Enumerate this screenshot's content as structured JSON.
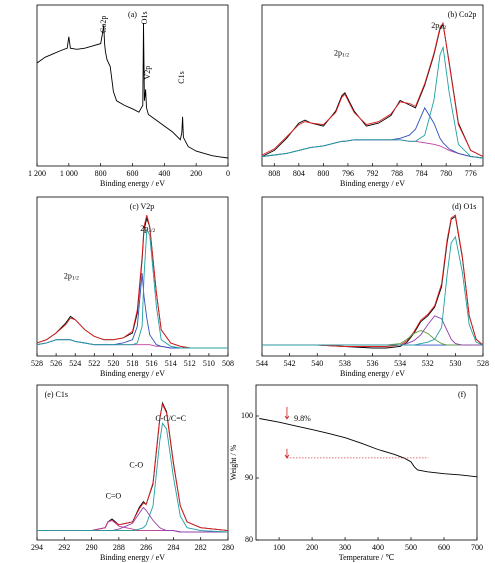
{
  "chart_data": [
    {
      "type": "line",
      "title": "(a)",
      "xlabel": "Binding energy / eV",
      "xlim": [
        1200,
        0
      ],
      "xticks": [
        {
          "value": 1200,
          "label": "1 200"
        },
        {
          "value": 1000,
          "label": "1 000"
        },
        800,
        600,
        400,
        200,
        0
      ],
      "x": [
        1200,
        1150,
        1100,
        1050,
        1010,
        1000,
        990,
        950,
        900,
        850,
        800,
        790,
        781,
        775,
        770,
        760,
        740,
        720,
        700,
        650,
        600,
        560,
        535,
        531,
        525,
        518,
        512,
        500,
        450,
        400,
        350,
        300,
        290,
        285,
        280,
        250,
        200,
        100,
        50,
        0
      ],
      "series": [
        {
          "color": "#000000",
          "values": [
            95,
            100,
            103,
            106,
            108,
            118,
            108,
            107,
            108,
            110,
            112,
            120,
            128,
            112,
            105,
            98,
            92,
            70,
            62,
            58,
            55,
            52,
            58,
            130,
            62,
            72,
            56,
            50,
            45,
            40,
            35,
            28,
            34,
            48,
            30,
            22,
            18,
            14,
            13,
            12
          ]
        }
      ],
      "annotations": [
        {
          "text": "Co2p"
        },
        {
          "text": "O1s"
        },
        {
          "text": "V2p"
        },
        {
          "text": "C1s"
        }
      ]
    },
    {
      "type": "line",
      "title": "(b) Co2p",
      "xlabel": "Binding energy / eV",
      "xlim": [
        810,
        774
      ],
      "xticks": [
        808,
        804,
        800,
        796,
        792,
        788,
        784,
        780,
        776
      ],
      "x": [
        810,
        808,
        806,
        804,
        803,
        802,
        800,
        798,
        797,
        796.5,
        795,
        793,
        791,
        789,
        787.5,
        786,
        785,
        783.5,
        782,
        781,
        780.5,
        779.5,
        778,
        776,
        774
      ],
      "series": [
        {
          "color": "#000000",
          "values": [
            8,
            12,
            20,
            30,
            32,
            30,
            28,
            38,
            48,
            50,
            38,
            28,
            30,
            35,
            45,
            42,
            40,
            55,
            75,
            92,
            95,
            70,
            30,
            12,
            8
          ]
        },
        {
          "color": "#e02020",
          "values": [
            9,
            13,
            21,
            29,
            31,
            30,
            29,
            37,
            47,
            49,
            37,
            29,
            31,
            36,
            44,
            43,
            41,
            56,
            76,
            93,
            96,
            69,
            29,
            12,
            8
          ]
        },
        {
          "color": "#c040a0",
          "values": [
            8,
            9,
            10,
            12,
            13,
            14,
            15,
            17,
            18,
            18,
            19,
            19,
            19,
            19,
            19,
            18,
            18,
            17,
            16,
            15,
            14,
            12,
            10,
            8,
            7
          ]
        },
        {
          "color": "#3050c0",
          "values": [
            8,
            9,
            10,
            12,
            13,
            14,
            15,
            17,
            18,
            18,
            19,
            19,
            19,
            19,
            20,
            22,
            26,
            40,
            30,
            20,
            17,
            13,
            10,
            8,
            7
          ]
        },
        {
          "color": "#20a0a0",
          "values": [
            8,
            9,
            10,
            12,
            13,
            14,
            15,
            17,
            18,
            18,
            19,
            19,
            19,
            19,
            19,
            18,
            18,
            22,
            45,
            75,
            80,
            50,
            16,
            8,
            7
          ]
        }
      ],
      "annotations": [
        {
          "text": "2p",
          "sub": "1/2"
        },
        {
          "text": "2p",
          "sub": "3/2"
        }
      ]
    },
    {
      "type": "line",
      "title": "(c) V2p",
      "xlabel": "Binding energy / eV",
      "xlim": [
        528,
        508
      ],
      "xticks": [
        528,
        526,
        524,
        522,
        520,
        518,
        516,
        514,
        512,
        510,
        508
      ],
      "x": [
        528,
        527,
        526,
        525,
        524.5,
        524,
        523,
        522,
        521,
        520,
        519,
        518,
        517.5,
        517,
        516.8,
        516.5,
        516.2,
        515.5,
        515,
        514,
        513,
        512,
        510,
        508
      ],
      "series": [
        {
          "color": "#000000",
          "values": [
            10,
            12,
            16,
            22,
            26,
            24,
            18,
            14,
            12,
            12,
            13,
            16,
            28,
            60,
            78,
            85,
            80,
            40,
            18,
            10,
            8,
            7,
            7,
            7
          ]
        },
        {
          "color": "#e02020",
          "values": [
            10,
            12,
            16,
            21,
            25,
            24,
            18,
            14,
            12,
            12,
            13,
            17,
            30,
            62,
            80,
            87,
            80,
            40,
            18,
            10,
            8,
            7,
            7,
            7
          ]
        },
        {
          "color": "#c040a0",
          "values": [
            9,
            10,
            12,
            12,
            12,
            11,
            10,
            9,
            9,
            9,
            9,
            9,
            9,
            9,
            9,
            9,
            9,
            8,
            8,
            7,
            7,
            7,
            7,
            7
          ]
        },
        {
          "color": "#3050c0",
          "values": [
            9,
            10,
            12,
            12,
            12,
            11,
            10,
            9,
            9,
            9,
            10,
            12,
            20,
            52,
            38,
            25,
            15,
            9,
            8,
            7,
            7,
            7,
            7,
            7
          ]
        },
        {
          "color": "#20a0a0",
          "values": [
            9,
            10,
            12,
            12,
            12,
            11,
            10,
            9,
            9,
            9,
            9,
            9,
            10,
            20,
            50,
            78,
            75,
            32,
            12,
            8,
            7,
            7,
            7,
            7
          ]
        }
      ],
      "annotations": [
        {
          "text": "2p",
          "sub": "1/2"
        },
        {
          "text": "2p",
          "sub": "3/2"
        }
      ]
    },
    {
      "type": "line",
      "title": "(d) O1s",
      "xlabel": "Binding energy / eV",
      "xlim": [
        544,
        528
      ],
      "xticks": [
        544,
        542,
        540,
        538,
        536,
        534,
        532,
        530,
        528
      ],
      "x": [
        544,
        542,
        540,
        538,
        536,
        535,
        534,
        533.5,
        533,
        532.5,
        532,
        531.5,
        531,
        530.6,
        530.3,
        530,
        529.5,
        529,
        528.5,
        528
      ],
      "series": [
        {
          "color": "#000000",
          "values": [
            10,
            10,
            10,
            9,
            8,
            8,
            9,
            12,
            18,
            26,
            30,
            36,
            50,
            80,
            96,
            98,
            70,
            30,
            14,
            10
          ]
        },
        {
          "color": "#e02020",
          "values": [
            10,
            10,
            10,
            9,
            9,
            9,
            10,
            13,
            19,
            27,
            31,
            37,
            52,
            82,
            97,
            99,
            71,
            30,
            14,
            10
          ]
        },
        {
          "color": "#3050c0",
          "values": [
            10,
            10,
            10,
            10,
            10,
            10,
            10,
            10,
            10,
            10,
            10,
            10,
            10,
            10,
            10,
            10,
            10,
            10,
            10,
            10
          ]
        },
        {
          "color": "#60a040",
          "values": [
            10,
            10,
            10,
            10,
            10,
            10,
            11,
            14,
            18,
            20,
            18,
            14,
            11,
            10,
            10,
            10,
            10,
            10,
            10,
            10
          ]
        },
        {
          "color": "#9040b0",
          "values": [
            10,
            10,
            10,
            10,
            10,
            10,
            10,
            11,
            13,
            17,
            24,
            30,
            28,
            20,
            14,
            11,
            10,
            10,
            10,
            10
          ]
        },
        {
          "color": "#20a0a0",
          "values": [
            10,
            10,
            10,
            10,
            10,
            10,
            10,
            10,
            10,
            11,
            12,
            14,
            22,
            58,
            80,
            84,
            60,
            24,
            12,
            10
          ]
        }
      ]
    },
    {
      "type": "line",
      "title": "(e) C1s",
      "xlabel": "Binding energy / eV",
      "xlim": [
        294,
        280
      ],
      "xticks": [
        294,
        292,
        290,
        288,
        286,
        284,
        282,
        280
      ],
      "x": [
        294,
        292,
        290,
        289,
        288.8,
        288.5,
        288,
        287,
        286.5,
        286.2,
        286,
        285.5,
        285,
        284.8,
        284.5,
        284,
        283.5,
        283,
        282,
        280
      ],
      "series": [
        {
          "color": "#000000",
          "values": [
            8,
            8,
            8,
            10,
            14,
            16,
            12,
            14,
            24,
            28,
            26,
            40,
            85,
            96,
            90,
            55,
            25,
            14,
            10,
            8
          ]
        },
        {
          "color": "#e02020",
          "values": [
            8,
            8,
            8,
            10,
            14,
            15,
            12,
            14,
            23,
            27,
            26,
            41,
            86,
            95,
            89,
            54,
            25,
            14,
            10,
            8
          ]
        },
        {
          "color": "#808040",
          "values": [
            8,
            8,
            8,
            8,
            8,
            8,
            8,
            8,
            8,
            8,
            8,
            8,
            8,
            8,
            8,
            8,
            7,
            7,
            7,
            7
          ]
        },
        {
          "color": "#c040a0",
          "values": [
            8,
            8,
            8,
            10,
            14,
            15,
            11,
            9,
            8,
            8,
            8,
            8,
            8,
            8,
            8,
            8,
            7,
            7,
            7,
            7
          ]
        },
        {
          "color": "#9040b0",
          "values": [
            8,
            8,
            8,
            8,
            8,
            8,
            9,
            13,
            20,
            24,
            22,
            15,
            10,
            9,
            8,
            8,
            7,
            7,
            7,
            7
          ]
        },
        {
          "color": "#20a0a0",
          "values": [
            8,
            8,
            8,
            8,
            8,
            8,
            8,
            8,
            9,
            10,
            12,
            25,
            70,
            82,
            78,
            45,
            18,
            10,
            8,
            7
          ]
        }
      ],
      "annotations": [
        {
          "text": "C=O"
        },
        {
          "text": "C-O"
        },
        {
          "text": "C-C/C=C"
        }
      ]
    },
    {
      "type": "line",
      "title": "(f)",
      "xlabel": "Temperature / ℃",
      "ylabel": "Weight / %",
      "xlim": [
        30,
        700
      ],
      "xticks": [
        100,
        200,
        300,
        400,
        500,
        600,
        700
      ],
      "ylim": [
        80,
        105
      ],
      "yticks": [
        80,
        90,
        100
      ],
      "x": [
        40,
        100,
        150,
        200,
        250,
        300,
        350,
        400,
        450,
        480,
        500,
        510,
        520,
        550,
        600,
        650,
        700
      ],
      "series": [
        {
          "color": "#000000",
          "values": [
            99.6,
            99,
            98.4,
            97.8,
            97.2,
            96.5,
            95.6,
            94.6,
            93.8,
            93.2,
            92.6,
            91.8,
            91.3,
            91,
            90.7,
            90.5,
            90.2
          ]
        }
      ],
      "annotations": [
        {
          "text": "9.8%"
        }
      ]
    }
  ]
}
